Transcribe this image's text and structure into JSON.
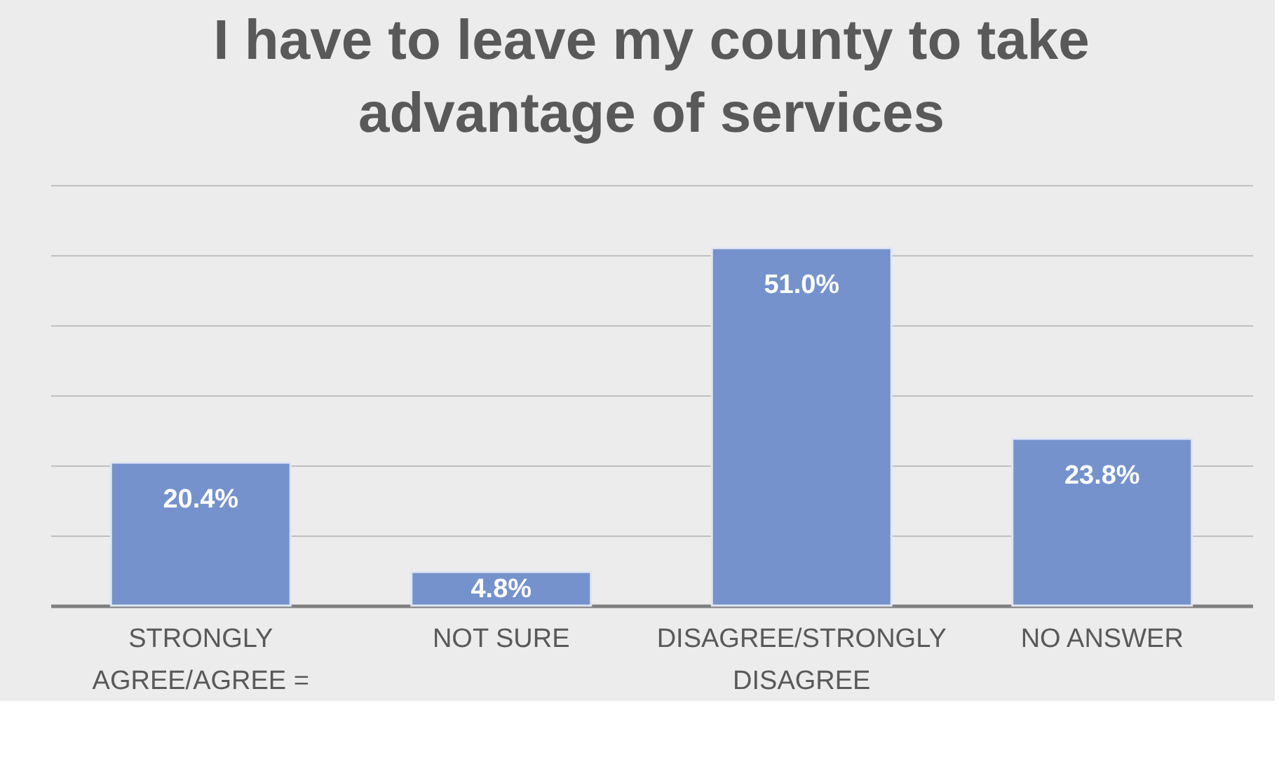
{
  "chart_data": {
    "type": "bar",
    "title": "I have to leave my county to take advantage of services",
    "categories": [
      "STRONGLY AGREE/AGREE =",
      "NOT SURE",
      "DISAGREE/STRONGLY DISAGREE",
      "NO ANSWER"
    ],
    "values": [
      20.4,
      4.8,
      51.0,
      23.8
    ],
    "value_labels": [
      "20.4%",
      "4.8%",
      "51.0%",
      "23.8%"
    ],
    "color": "#7592cc",
    "ylim": [
      0,
      60
    ],
    "yticks": [
      {
        "value": 0,
        "label": null
      },
      {
        "value": 10,
        "label": null
      },
      {
        "value": 20,
        "label": null
      },
      {
        "value": 30,
        "label": null
      },
      {
        "value": 40,
        "label": null
      },
      {
        "value": 50,
        "label": null
      },
      {
        "value": 60,
        "label": null
      }
    ],
    "grid": "y",
    "tick_labels": "x"
  }
}
